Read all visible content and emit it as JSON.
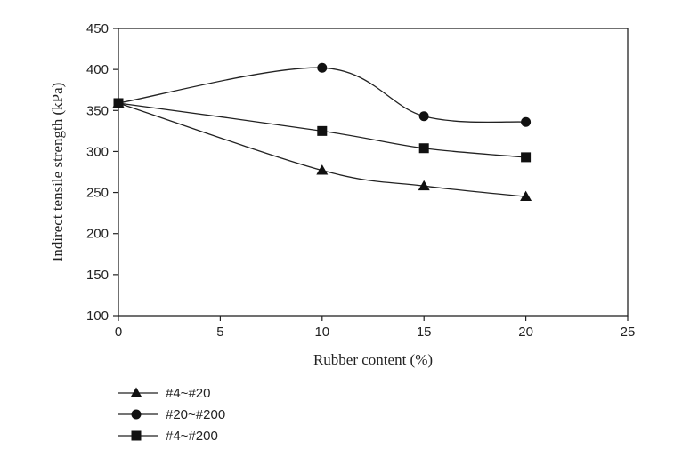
{
  "chart_data": {
    "type": "line",
    "xlabel": "Rubber content (%)",
    "ylabel": "Indirect tensile strength (kPa)",
    "xlim": [
      0,
      25
    ],
    "ylim": [
      100,
      450
    ],
    "xticks": [
      0,
      5,
      10,
      15,
      20,
      25
    ],
    "yticks": [
      100,
      150,
      200,
      250,
      300,
      350,
      400,
      450
    ],
    "grid": false,
    "legend_position": "bottom-left",
    "smooth": true,
    "series": [
      {
        "name": "#4~#20",
        "marker": "triangle",
        "x": [
          0,
          10,
          15,
          20
        ],
        "y": [
          359,
          277,
          258,
          245
        ]
      },
      {
        "name": "#20~#200",
        "marker": "circle",
        "x": [
          0,
          10,
          15,
          20
        ],
        "y": [
          359,
          402,
          343,
          336
        ]
      },
      {
        "name": "#4~#200",
        "marker": "square",
        "x": [
          0,
          10,
          15,
          20
        ],
        "y": [
          359,
          325,
          304,
          293
        ]
      }
    ],
    "colors": {
      "line": "#222222",
      "marker": "#111111"
    }
  }
}
